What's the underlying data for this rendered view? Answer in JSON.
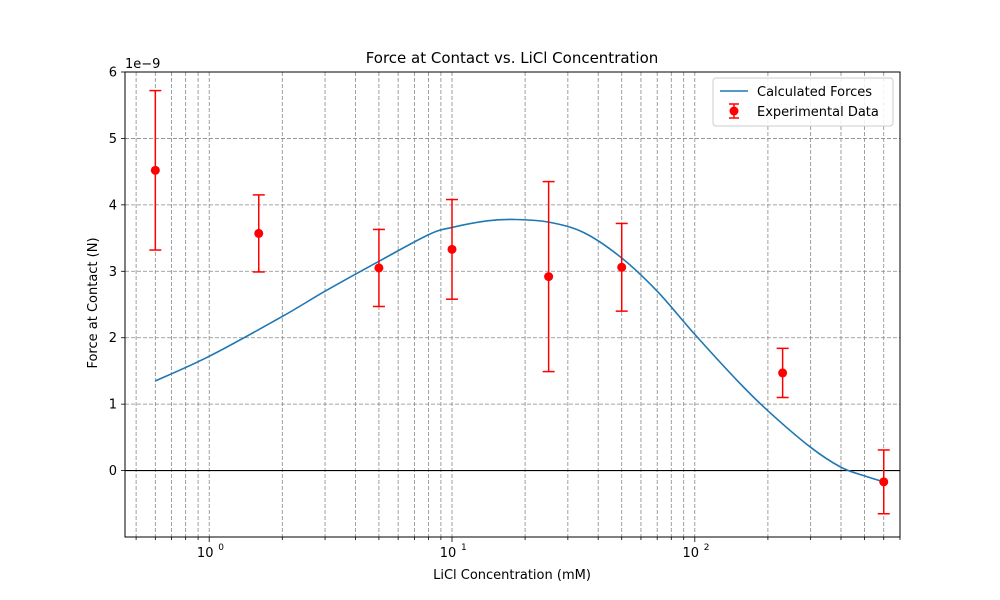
{
  "chart_data": {
    "type": "scatter",
    "title": "Force at Contact vs. LiCl Concentration",
    "xlabel": "LiCl Concentration (mM)",
    "ylabel": "Force at Contact (N)",
    "y_offset_label": "1e−9",
    "x_scale": "log",
    "xlim": [
      0.45,
      700
    ],
    "ylim": [
      -1.0,
      6.0
    ],
    "x_tick_labels": [
      {
        "value": 1,
        "base": "10",
        "exp": "0"
      },
      {
        "value": 10,
        "base": "10",
        "exp": "1"
      },
      {
        "value": 100,
        "base": "10",
        "exp": "2"
      }
    ],
    "y_ticks": [
      0,
      1,
      2,
      3,
      4,
      5,
      6
    ],
    "grid": true,
    "grid_style": "dashed",
    "zero_line": true,
    "legend_position": "top-right",
    "series": [
      {
        "name": "Calculated Forces",
        "kind": "line",
        "color": "#1f77b4",
        "x": [
          0.6,
          1,
          2,
          3,
          5,
          8,
          10,
          14,
          18,
          25,
          35,
          50,
          70,
          100,
          150,
          200,
          300,
          400,
          500,
          600
        ],
        "y": [
          1.35,
          1.72,
          2.32,
          2.7,
          3.15,
          3.55,
          3.66,
          3.76,
          3.78,
          3.74,
          3.58,
          3.2,
          2.7,
          2.05,
          1.35,
          0.9,
          0.35,
          0.05,
          -0.08,
          -0.17
        ]
      },
      {
        "name": "Experimental Data",
        "kind": "errorbar",
        "color": "#ff0000",
        "x": [
          0.6,
          1.6,
          5,
          10,
          25,
          50,
          230,
          600
        ],
        "y": [
          4.52,
          3.57,
          3.05,
          3.33,
          2.92,
          3.06,
          1.47,
          -0.17
        ],
        "yerr": [
          1.2,
          0.58,
          0.58,
          0.75,
          1.43,
          0.66,
          0.37,
          0.48
        ]
      }
    ]
  }
}
